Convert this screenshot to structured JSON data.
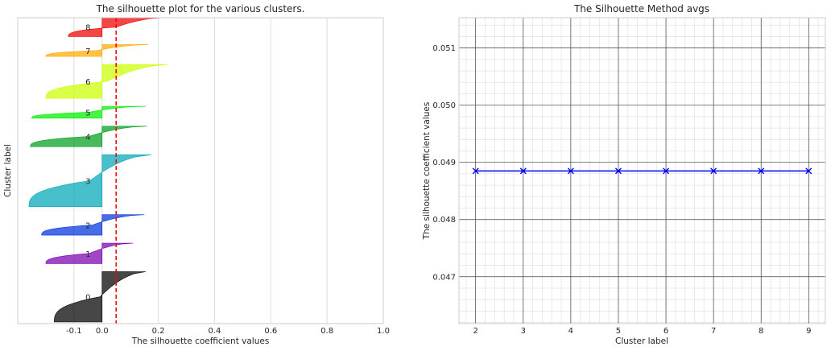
{
  "chart_data": [
    {
      "type": "silhouette",
      "title": "The silhouette plot for the various clusters.",
      "xlabel": "The silhouette coefficient values",
      "ylabel": "Cluster label",
      "xlim": [
        -0.3,
        1.0
      ],
      "xticks": [
        "-0.1",
        "0.0",
        "0.2",
        "0.4",
        "0.6",
        "0.8",
        "1.0"
      ],
      "xtick_values": [
        -0.1,
        0.0,
        0.2,
        0.4,
        0.6,
        0.8,
        1.0
      ],
      "average_line": 0.05,
      "average_line_color": "#ff0000",
      "grid": true,
      "clusters": [
        {
          "label": "0",
          "size": 320,
          "min": -0.17,
          "max": 0.155,
          "color": "#000000"
        },
        {
          "label": "1",
          "size": 130,
          "min": -0.2,
          "max": 0.11,
          "color": "#7b00b0"
        },
        {
          "label": "2",
          "size": 130,
          "min": -0.215,
          "max": 0.15,
          "color": "#0033dd"
        },
        {
          "label": "3",
          "size": 330,
          "min": -0.26,
          "max": 0.175,
          "color": "#00a8b8"
        },
        {
          "label": "4",
          "size": 130,
          "min": -0.255,
          "max": 0.16,
          "color": "#00a020"
        },
        {
          "label": "5",
          "size": 75,
          "min": -0.25,
          "max": 0.155,
          "color": "#00ee00"
        },
        {
          "label": "6",
          "size": 215,
          "min": -0.2,
          "max": 0.235,
          "color": "#ccff00"
        },
        {
          "label": "7",
          "size": 75,
          "min": -0.2,
          "max": 0.165,
          "color": "#ffaa00"
        },
        {
          "label": "8",
          "size": 120,
          "min": -0.12,
          "max": 0.22,
          "color": "#ee0000"
        }
      ]
    },
    {
      "type": "line",
      "title": "The Silhouette Method avgs",
      "xlabel": "Cluster label",
      "ylabel": "The silhouette coefficient values",
      "x": [
        2,
        3,
        4,
        5,
        6,
        7,
        8,
        9
      ],
      "y": [
        0.04885,
        0.04885,
        0.04885,
        0.04885,
        0.04885,
        0.04885,
        0.04885,
        0.04885
      ],
      "xticks": [
        "2",
        "3",
        "4",
        "5",
        "6",
        "7",
        "8",
        "9"
      ],
      "yticks": [
        "0.047",
        "0.048",
        "0.049",
        "0.050",
        "0.051"
      ],
      "ytick_values": [
        0.047,
        0.048,
        0.049,
        0.05,
        0.051
      ],
      "xlim": [
        1.65,
        9.35
      ],
      "ylim": [
        0.04618,
        0.05153
      ],
      "marker": "x",
      "line_color": "#0000ff",
      "grid": "major and minor"
    }
  ]
}
